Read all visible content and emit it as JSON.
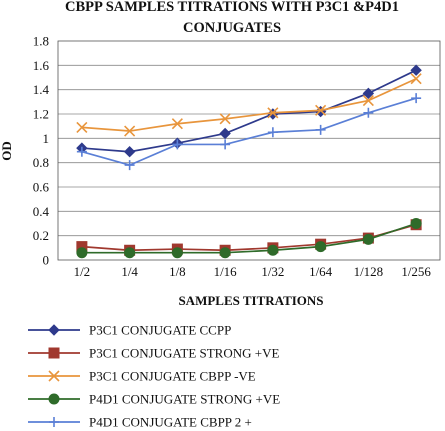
{
  "chart_data": {
    "type": "line",
    "title": [
      "CBPP SAMPLES TITRATIONS WITH P3C1 &P4D1",
      "CONJUGATES"
    ],
    "xlabel": "SAMPLES TITRATIONS",
    "ylabel": "OD",
    "categories": [
      "1/2",
      "1/4",
      "1/8",
      "1/16",
      "1/32",
      "1/64",
      "1/128",
      "1/256"
    ],
    "ylim": [
      0,
      1.8
    ],
    "yticks": [
      "0",
      "0.2",
      "0.4",
      "0.6",
      "0.8",
      "1",
      "1.2",
      "1.4",
      "1.6",
      "1.8"
    ],
    "grid": "horizontal",
    "legend_position": "bottom",
    "series": [
      {
        "name": "P3C1 CONJUGATE CCPP",
        "values": [
          0.92,
          0.89,
          0.96,
          1.04,
          1.2,
          1.22,
          1.37,
          1.56
        ],
        "color": "#2e3a8c",
        "marker": "diamond"
      },
      {
        "name": "P3C1 CONJUGATE STRONG +VE",
        "values": [
          0.11,
          0.08,
          0.09,
          0.08,
          0.1,
          0.13,
          0.18,
          0.29
        ],
        "color": "#a0382e",
        "marker": "square"
      },
      {
        "name": "P3C1 CONJUGATE CBPP -VE",
        "values": [
          1.09,
          1.06,
          1.12,
          1.16,
          1.21,
          1.23,
          1.31,
          1.49
        ],
        "color": "#e8953c",
        "marker": "x"
      },
      {
        "name": "P4D1 CONJUGATE STRONG +VE",
        "values": [
          0.06,
          0.06,
          0.06,
          0.06,
          0.08,
          0.11,
          0.17,
          0.3
        ],
        "color": "#2f6b2a",
        "marker": "circle"
      },
      {
        "name": "P4D1 CONJUGATE CBPP 2 +",
        "values": [
          0.89,
          0.78,
          0.95,
          0.95,
          1.05,
          1.07,
          1.21,
          1.33
        ],
        "color": "#5a7fd6",
        "marker": "plus"
      }
    ]
  }
}
